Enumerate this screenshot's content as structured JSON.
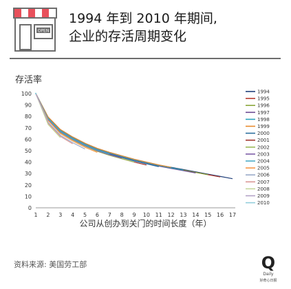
{
  "header": {
    "title_line1": "1994 年到 2010 年期间,",
    "title_line2": "企业的存活周期变化",
    "shop_sign": "OPEN",
    "icon": "storefront-icon"
  },
  "footer": {
    "source": "资料来源: 美国劳工部",
    "logo_letter": "Q",
    "logo_sub": "Daily",
    "logo_caption": "好奇心日报"
  },
  "chart_data": {
    "type": "line",
    "ylabel": "存活率",
    "xlabel": "公司从创办到关门的时间长度（年）",
    "xlim": [
      1,
      17
    ],
    "ylim": [
      0,
      100
    ],
    "x_ticks": [
      1,
      2,
      3,
      4,
      5,
      6,
      7,
      8,
      9,
      10,
      11,
      12,
      13,
      14,
      15,
      16,
      17
    ],
    "y_ticks": [
      0,
      10,
      20,
      30,
      40,
      50,
      60,
      70,
      80,
      90,
      100
    ],
    "grid": false,
    "legend_position": "right",
    "series": [
      {
        "name": "1994",
        "color": "#1f3f7a",
        "values": [
          100,
          79.5,
          68.5,
          62,
          56.5,
          52,
          48.5,
          45.5,
          42.5,
          40,
          37.5,
          35.5,
          33.5,
          31.5,
          29.5,
          27.5,
          25.5
        ]
      },
      {
        "name": "1995",
        "color": "#b53a2e",
        "values": [
          100,
          79,
          68,
          61.5,
          56,
          51.5,
          48,
          45,
          42,
          39.5,
          37,
          35,
          33,
          31,
          29,
          27
        ]
      },
      {
        "name": "1996",
        "color": "#8aa63a",
        "values": [
          100,
          79,
          68,
          61.5,
          56,
          51.5,
          48,
          45,
          42,
          39.5,
          37,
          35,
          33,
          31,
          29
        ]
      },
      {
        "name": "1997",
        "color": "#6b4a93",
        "values": [
          100,
          78.5,
          67.5,
          61,
          55.5,
          51,
          47.5,
          44.5,
          41.5,
          39,
          36.5,
          34.5,
          32.5,
          30.5
        ]
      },
      {
        "name": "1998",
        "color": "#2ba3bd",
        "values": [
          100,
          79,
          68,
          61.5,
          56,
          51.5,
          48,
          45,
          42,
          39.5,
          37,
          35,
          33
        ]
      },
      {
        "name": "1999",
        "color": "#e8892b",
        "values": [
          100,
          79.5,
          68.5,
          62,
          56.5,
          52,
          48.5,
          45.5,
          42.5,
          40,
          37.5,
          35.5
        ]
      },
      {
        "name": "2000",
        "color": "#2c6e9e",
        "values": [
          100,
          78,
          67,
          60.5,
          55,
          50.5,
          47,
          44,
          41,
          38.5,
          36
        ]
      },
      {
        "name": "2001",
        "color": "#a0342b",
        "values": [
          100,
          77,
          66,
          59.5,
          54,
          49.5,
          46,
          43,
          40,
          37.5
        ]
      },
      {
        "name": "2002",
        "color": "#9bbb59",
        "values": [
          100,
          77,
          66,
          59.5,
          54,
          49.5,
          46,
          43,
          40
        ]
      },
      {
        "name": "2003",
        "color": "#7e5da8",
        "values": [
          100,
          77.5,
          66.5,
          60,
          54.5,
          50,
          46.5,
          43.5
        ]
      },
      {
        "name": "2004",
        "color": "#4bacc6",
        "values": [
          100,
          78,
          67,
          60.5,
          55,
          50.5,
          47
        ]
      },
      {
        "name": "2005",
        "color": "#f79646",
        "values": [
          100,
          76.5,
          65,
          58.5,
          53,
          48.5
        ]
      },
      {
        "name": "2006",
        "color": "#9aa9c8",
        "values": [
          100,
          75,
          63.5,
          57,
          51.5
        ]
      },
      {
        "name": "2007",
        "color": "#d99694",
        "values": [
          100,
          74,
          62.5,
          56
        ]
      },
      {
        "name": "2008",
        "color": "#c4d79b",
        "values": [
          100,
          73,
          61.5
        ]
      },
      {
        "name": "2009",
        "color": "#b3a2c7",
        "values": [
          100,
          75.5
        ]
      },
      {
        "name": "2010",
        "color": "#92cddc",
        "values": [
          100
        ]
      }
    ]
  }
}
